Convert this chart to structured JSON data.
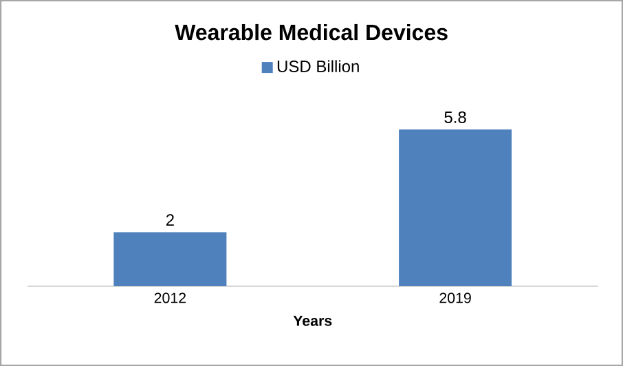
{
  "chart_data": {
    "type": "bar",
    "title": "Wearable Medical Devices",
    "xlabel": "Years",
    "categories": [
      "2012",
      "2019"
    ],
    "series": [
      {
        "name": "USD Billion",
        "color": "#4f81bd",
        "values": [
          2,
          5.8
        ]
      }
    ],
    "tick_labels": "x",
    "data_labels": true,
    "legend": "top"
  }
}
